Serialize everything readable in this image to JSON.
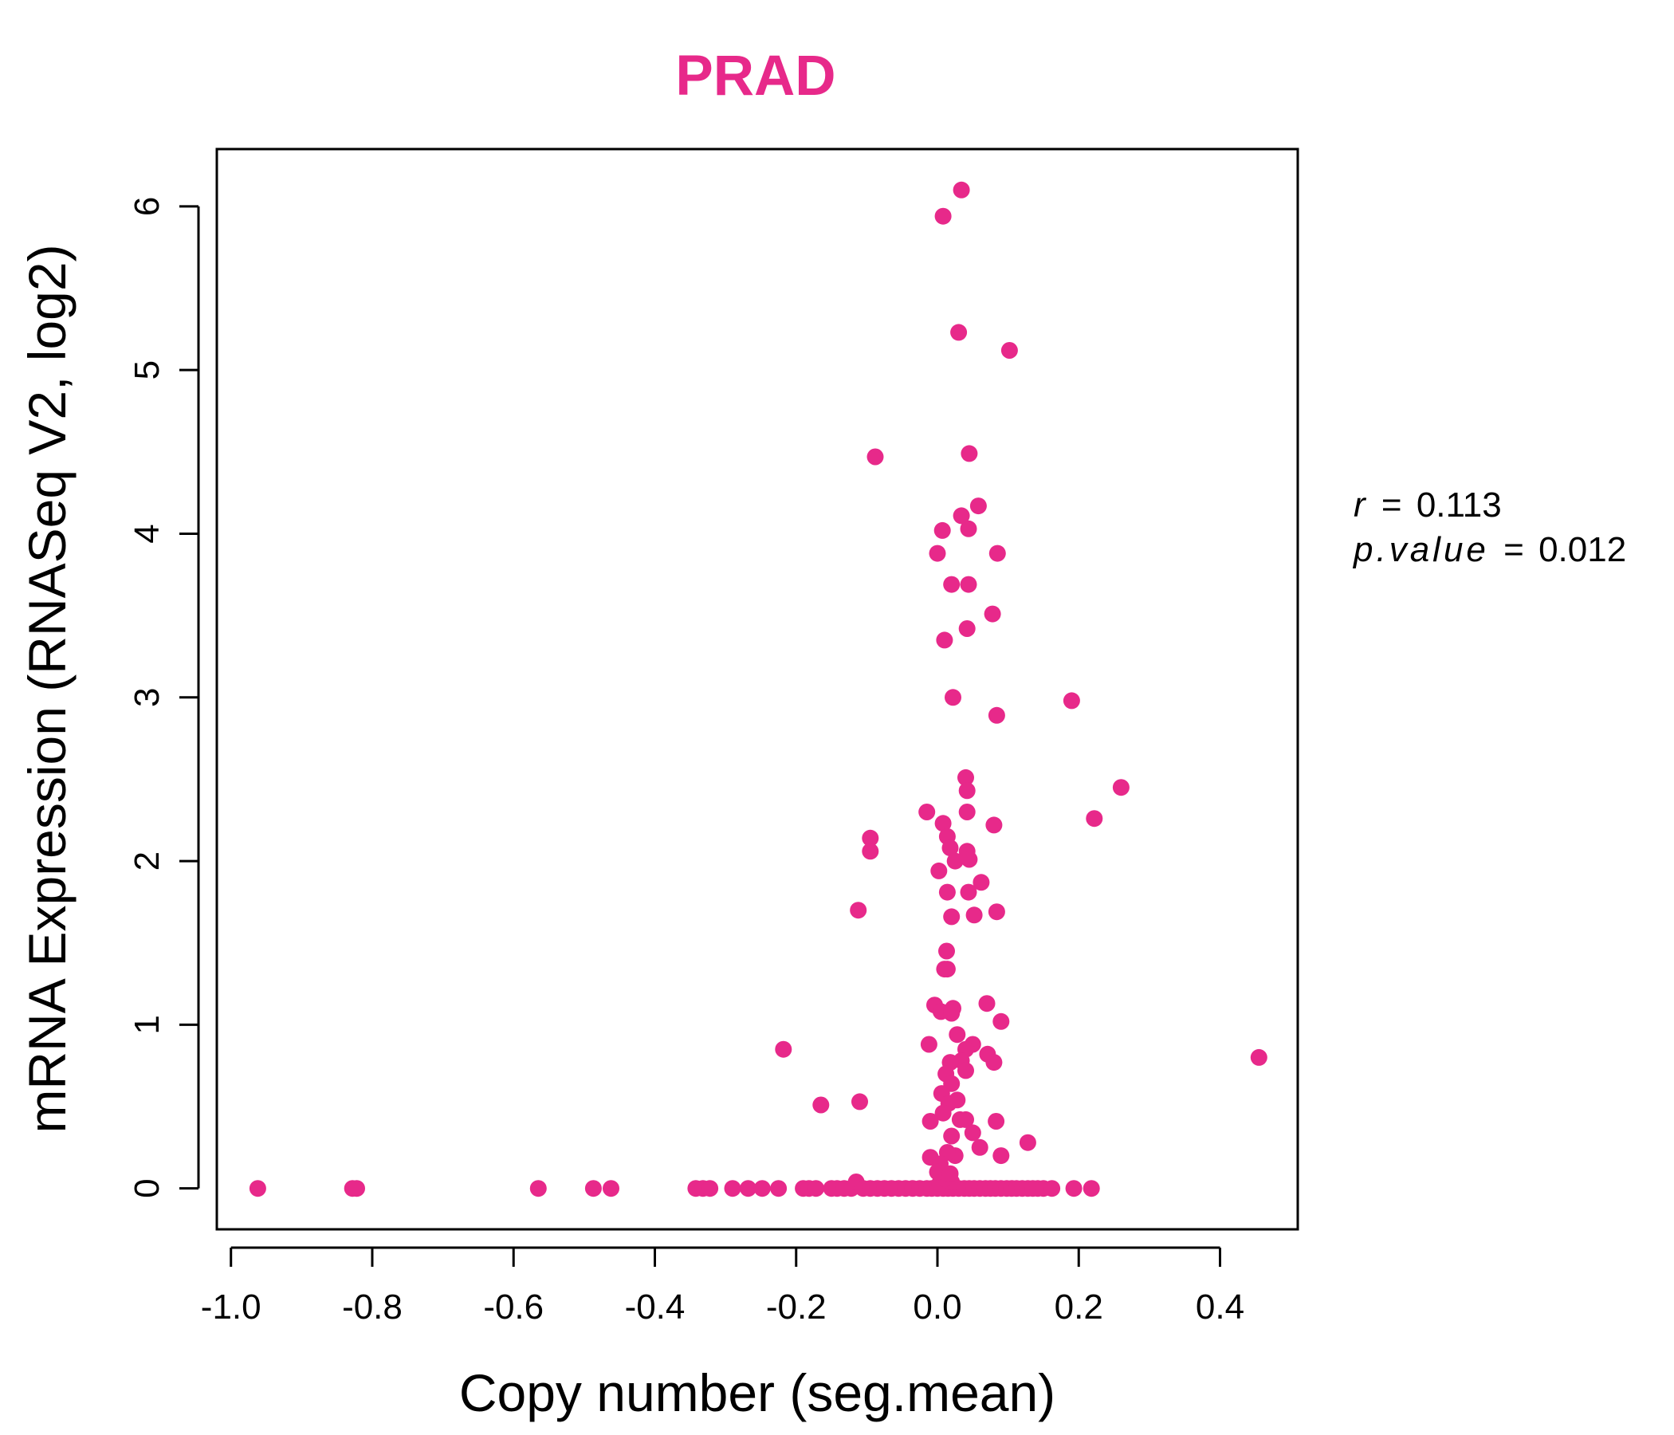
{
  "chart_data": {
    "type": "scatter",
    "title": "PRAD",
    "xlabel": "Copy number (seg.mean)",
    "ylabel": "mRNA Expression (RNASeq V2, log2)",
    "xlim": [
      -1.02,
      0.51
    ],
    "ylim": [
      -0.25,
      6.35
    ],
    "xticks": [
      -1.0,
      -0.8,
      -0.6,
      -0.4,
      -0.2,
      0.0,
      0.2,
      0.4
    ],
    "xtick_labels": [
      "-1.0",
      "-0.8",
      "-0.6",
      "-0.4",
      "-0.2",
      "0.0",
      "0.2",
      "0.4"
    ],
    "yticks": [
      0,
      1,
      2,
      3,
      4,
      5,
      6
    ],
    "ytick_labels": [
      "0",
      "1",
      "2",
      "3",
      "4",
      "5",
      "6"
    ],
    "grid": false,
    "legend": "none",
    "annotations": {
      "r_label": "r",
      "r_value": "0.113",
      "p_label": "p.value",
      "p_value": "0.012",
      "equals": "="
    },
    "colors": {
      "points": "#e7298a",
      "title": "#e7298a",
      "axes": "#000000"
    },
    "series": [
      {
        "points": [
          [
            -0.962,
            0
          ],
          [
            -0.828,
            0
          ],
          [
            -0.822,
            0
          ],
          [
            -0.565,
            0
          ],
          [
            -0.487,
            0
          ],
          [
            -0.462,
            0
          ],
          [
            -0.342,
            0
          ],
          [
            -0.332,
            0
          ],
          [
            -0.322,
            0
          ],
          [
            -0.29,
            0
          ],
          [
            -0.268,
            0
          ],
          [
            -0.248,
            0
          ],
          [
            -0.225,
            0
          ],
          [
            -0.19,
            0
          ],
          [
            -0.182,
            0
          ],
          [
            -0.172,
            0
          ],
          [
            -0.15,
            0
          ],
          [
            -0.142,
            0
          ],
          [
            -0.132,
            0
          ],
          [
            -0.122,
            0
          ],
          [
            -0.115,
            0.04
          ],
          [
            -0.105,
            0
          ],
          [
            -0.095,
            0
          ],
          [
            -0.085,
            0
          ],
          [
            -0.075,
            0
          ],
          [
            -0.065,
            0
          ],
          [
            -0.055,
            0
          ],
          [
            -0.045,
            0
          ],
          [
            -0.035,
            0
          ],
          [
            -0.025,
            0
          ],
          [
            -0.015,
            0
          ],
          [
            -0.008,
            0
          ],
          [
            0.0,
            0
          ],
          [
            0.008,
            0
          ],
          [
            0.015,
            0
          ],
          [
            0.022,
            0
          ],
          [
            0.03,
            0
          ],
          [
            0.038,
            0
          ],
          [
            0.045,
            0
          ],
          [
            0.052,
            0
          ],
          [
            0.06,
            0
          ],
          [
            0.068,
            0
          ],
          [
            0.075,
            0
          ],
          [
            0.082,
            0
          ],
          [
            0.09,
            0
          ],
          [
            0.098,
            0
          ],
          [
            0.105,
            0
          ],
          [
            0.112,
            0
          ],
          [
            0.12,
            0
          ],
          [
            0.128,
            0
          ],
          [
            0.135,
            0
          ],
          [
            0.142,
            0
          ],
          [
            0.15,
            0
          ],
          [
            0.162,
            0
          ],
          [
            0.193,
            0
          ],
          [
            0.218,
            0
          ],
          [
            0.003,
            0.03
          ],
          [
            0.02,
            0.04
          ],
          [
            0.01,
            0.06
          ],
          [
            0.034,
            6.1
          ],
          [
            0.008,
            5.94
          ],
          [
            0.03,
            5.23
          ],
          [
            0.102,
            5.12
          ],
          [
            -0.088,
            4.47
          ],
          [
            0.045,
            4.49
          ],
          [
            0.058,
            4.17
          ],
          [
            0.034,
            4.11
          ],
          [
            0.007,
            4.02
          ],
          [
            0.044,
            4.03
          ],
          [
            0.0,
            3.88
          ],
          [
            0.085,
            3.88
          ],
          [
            0.02,
            3.69
          ],
          [
            0.044,
            3.69
          ],
          [
            0.078,
            3.51
          ],
          [
            0.042,
            3.42
          ],
          [
            0.01,
            3.35
          ],
          [
            0.022,
            3.0
          ],
          [
            0.19,
            2.98
          ],
          [
            0.084,
            2.89
          ],
          [
            0.26,
            2.45
          ],
          [
            0.04,
            2.51
          ],
          [
            0.042,
            2.43
          ],
          [
            -0.015,
            2.3
          ],
          [
            0.042,
            2.3
          ],
          [
            0.222,
            2.26
          ],
          [
            0.008,
            2.23
          ],
          [
            0.08,
            2.22
          ],
          [
            0.014,
            2.15
          ],
          [
            -0.095,
            2.14
          ],
          [
            0.018,
            2.08
          ],
          [
            -0.095,
            2.06
          ],
          [
            0.042,
            2.06
          ],
          [
            0.025,
            2.0
          ],
          [
            0.045,
            2.01
          ],
          [
            0.002,
            1.94
          ],
          [
            0.062,
            1.87
          ],
          [
            0.014,
            1.81
          ],
          [
            0.044,
            1.81
          ],
          [
            -0.112,
            1.7
          ],
          [
            0.084,
            1.69
          ],
          [
            0.052,
            1.67
          ],
          [
            0.02,
            1.66
          ],
          [
            0.013,
            1.45
          ],
          [
            0.01,
            1.34
          ],
          [
            0.014,
            1.34
          ],
          [
            0.07,
            1.13
          ],
          [
            -0.004,
            1.12
          ],
          [
            0.022,
            1.1
          ],
          [
            0.005,
            1.08
          ],
          [
            0.02,
            1.07
          ],
          [
            0.09,
            1.02
          ],
          [
            0.028,
            0.94
          ],
          [
            -0.012,
            0.88
          ],
          [
            0.05,
            0.88
          ],
          [
            0.04,
            0.85
          ],
          [
            -0.218,
            0.85
          ],
          [
            0.071,
            0.82
          ],
          [
            0.455,
            0.8
          ],
          [
            0.034,
            0.78
          ],
          [
            0.018,
            0.77
          ],
          [
            0.08,
            0.77
          ],
          [
            0.04,
            0.72
          ],
          [
            0.012,
            0.7
          ],
          [
            0.02,
            0.64
          ],
          [
            0.006,
            0.58
          ],
          [
            0.028,
            0.54
          ],
          [
            0.016,
            0.52
          ],
          [
            -0.165,
            0.51
          ],
          [
            -0.11,
            0.53
          ],
          [
            0.008,
            0.46
          ],
          [
            0.032,
            0.42
          ],
          [
            0.04,
            0.42
          ],
          [
            0.083,
            0.41
          ],
          [
            -0.01,
            0.41
          ],
          [
            0.05,
            0.34
          ],
          [
            0.02,
            0.32
          ],
          [
            0.128,
            0.28
          ],
          [
            0.06,
            0.25
          ],
          [
            0.025,
            0.2
          ],
          [
            0.09,
            0.2
          ],
          [
            -0.01,
            0.19
          ],
          [
            0.014,
            0.22
          ],
          [
            0.004,
            0.15
          ],
          [
            0.0,
            0.1
          ],
          [
            0.018,
            0.09
          ]
        ]
      }
    ]
  }
}
